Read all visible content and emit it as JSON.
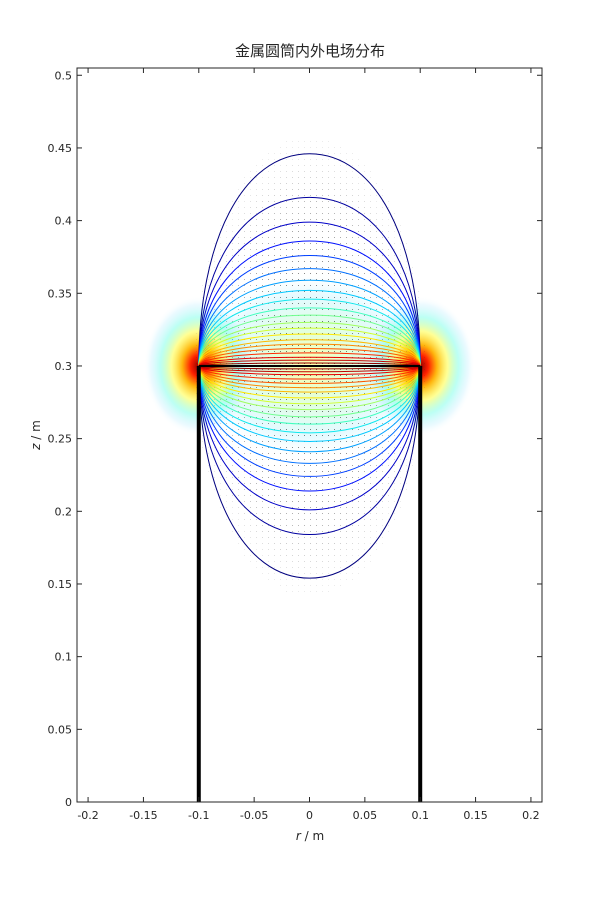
{
  "chart_data": {
    "type": "contour",
    "title": "金属圆筒内外电场分布",
    "xlabel_var": "r",
    "xlabel_unit": " / m",
    "ylabel_var": "z",
    "ylabel_unit": " / m",
    "xlim": [
      -0.21,
      0.21
    ],
    "ylim": [
      0,
      0.505
    ],
    "xticks": [
      -0.2,
      -0.15,
      -0.1,
      -0.05,
      0,
      0.05,
      0.1,
      0.15,
      0.2
    ],
    "xtick_labels": [
      "-0.2",
      "-0.15",
      "-0.1",
      "-0.05",
      "0",
      "0.05",
      "0.1",
      "0.15",
      "0.2"
    ],
    "yticks": [
      0,
      0.05,
      0.1,
      0.15,
      0.2,
      0.25,
      0.3,
      0.35,
      0.4,
      0.45,
      0.5
    ],
    "ytick_labels": [
      "0",
      "0.05",
      "0.1",
      "0.15",
      "0.2",
      "0.25",
      "0.3",
      "0.35",
      "0.4",
      "0.45",
      "0.5"
    ],
    "grid": false,
    "cylinder": {
      "radius": 0.1,
      "z_bottom": 0,
      "z_top": 0.3,
      "color": "#000000"
    },
    "lid": {
      "z": 0.3,
      "r_min": -0.1,
      "r_max": 0.1
    },
    "contours": {
      "center_z": 0.3,
      "half_width": 0.1,
      "upper_peaks": [
        0.446,
        0.416,
        0.399,
        0.386,
        0.376,
        0.367,
        0.359,
        0.352,
        0.346,
        0.34,
        0.335,
        0.33,
        0.326,
        0.322,
        0.318,
        0.315,
        0.312,
        0.309,
        0.306,
        0.304,
        0.302
      ],
      "lower_troughs": [
        0.154,
        0.184,
        0.201,
        0.214,
        0.224,
        0.233,
        0.241,
        0.248,
        0.254,
        0.26,
        0.265,
        0.27,
        0.274,
        0.278,
        0.282,
        0.285,
        0.288,
        0.291,
        0.294,
        0.296,
        0.298
      ],
      "colors": [
        "#00007f",
        "#00009f",
        "#0000c8",
        "#0010ff",
        "#0040ff",
        "#0070ff",
        "#00a0ff",
        "#00c8ff",
        "#10e8ef",
        "#40ffbf",
        "#70ff8f",
        "#a0ff5f",
        "#d0ff2f",
        "#ffe800",
        "#ffb800",
        "#ff8800",
        "#ff5800",
        "#ff2800",
        "#e80000",
        "#c00000",
        "#900000"
      ]
    },
    "field_hotspots": [
      {
        "r": -0.1,
        "z": 0.3,
        "colormap": "jet"
      },
      {
        "r": 0.1,
        "z": 0.3,
        "colormap": "jet"
      }
    ]
  }
}
